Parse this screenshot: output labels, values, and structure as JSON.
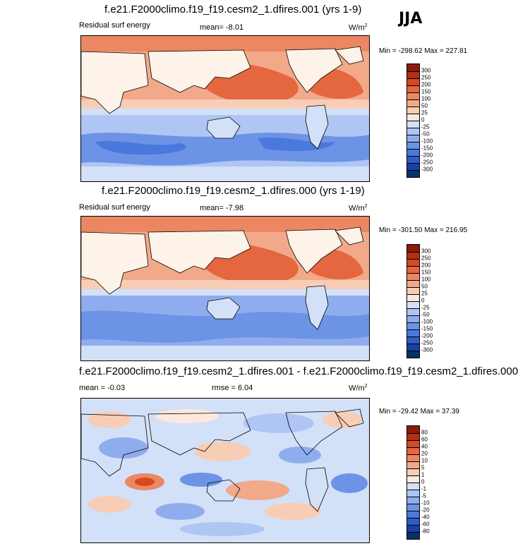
{
  "season": "JJA",
  "units_main": "W/m",
  "units_exp": "2",
  "colors": {
    "main": [
      "#08306b",
      "#1b3fa8",
      "#2f5cc9",
      "#4b78dd",
      "#6d93e6",
      "#8fadee",
      "#afc6f4",
      "#d2e1f8",
      "#fce8dc",
      "#f8cdb5",
      "#f2a98a",
      "#ec8763",
      "#e4673f",
      "#d34a23",
      "#b42e12",
      "#8b1a0a"
    ],
    "diff": [
      "#08306b",
      "#1b3fa8",
      "#2f5cc9",
      "#4b78dd",
      "#6d93e6",
      "#8fadee",
      "#afc6f4",
      "#d2e1f8",
      "#fce8dc",
      "#f8cdb5",
      "#f2a98a",
      "#ec8763",
      "#e4673f",
      "#d34a23",
      "#b42e12",
      "#8b1a0a"
    ],
    "land": "#fdf3e8",
    "map_bg": "#f2a98a"
  },
  "panels": [
    {
      "title": "f.e21.F2000climo.f19_f19.cesm2_1.dfires.001 (yrs 1-9)",
      "left_label": "Residual surf energy",
      "mid_label": "mean=  -8.01",
      "minmax": "Min = -298.62 Max = 227.81",
      "ticks": [
        "300",
        "250",
        "200",
        "150",
        "100",
        "50",
        "25",
        "0",
        "-25",
        "-50",
        "-100",
        "-150",
        "-200",
        "-250",
        "-300"
      ]
    },
    {
      "title": "f.e21.F2000climo.f19_f19.cesm2_1.dfires.000 (yrs 1-19)",
      "left_label": "Residual surf energy",
      "mid_label": "mean=  -7.98",
      "minmax": "Min = -301.50 Max = 216.95",
      "ticks": [
        "300",
        "250",
        "200",
        "150",
        "100",
        "50",
        "25",
        "0",
        "-25",
        "-50",
        "-100",
        "-150",
        "-200",
        "-250",
        "-300"
      ]
    },
    {
      "title": "f.e21.F2000climo.f19_f19.cesm2_1.dfires.001 - f.e21.F2000climo.f19_f19.cesm2_1.dfires.000",
      "left_label": "mean =  -0.03",
      "mid_label": "rmse =  6.04",
      "minmax": "Min = -29.42 Max =  37.39",
      "ticks": [
        "80",
        "60",
        "40",
        "20",
        "10",
        "5",
        "1",
        "0",
        "-1",
        "-5",
        "-10",
        "-20",
        "-40",
        "-60",
        "-80"
      ]
    }
  ],
  "chart_data": [
    {
      "type": "heatmap",
      "title": "f.e21.F2000climo.f19_f19.cesm2_1.dfires.001 (yrs 1-9)",
      "variable": "Residual surf energy",
      "units": "W/m2",
      "mean": -8.01,
      "min": -298.62,
      "max": 227.81,
      "contour_levels": [
        -300,
        -250,
        -200,
        -150,
        -100,
        -50,
        -25,
        0,
        25,
        50,
        100,
        150,
        200,
        250,
        300
      ],
      "pattern": "positive (red) over Northern Hemisphere oceans, negative (blue) over Southern Hemisphere oceans"
    },
    {
      "type": "heatmap",
      "title": "f.e21.F2000climo.f19_f19.cesm2_1.dfires.000 (yrs 1-19)",
      "variable": "Residual surf energy",
      "units": "W/m2",
      "mean": -7.98,
      "min": -301.5,
      "max": 216.95,
      "contour_levels": [
        -300,
        -250,
        -200,
        -150,
        -100,
        -50,
        -25,
        0,
        25,
        50,
        100,
        150,
        200,
        250,
        300
      ],
      "pattern": "positive (red) over Northern Hemisphere oceans, negative (blue) over Southern Hemisphere oceans"
    },
    {
      "type": "heatmap",
      "title": "f.e21.F2000climo.f19_f19.cesm2_1.dfires.001 - f.e21.F2000climo.f19_f19.cesm2_1.dfires.000",
      "variable": "difference",
      "units": "W/m2",
      "mean": -0.03,
      "rmse": 6.04,
      "min": -29.42,
      "max": 37.39,
      "contour_levels": [
        -80,
        -60,
        -40,
        -20,
        -10,
        -5,
        -1,
        0,
        1,
        5,
        10,
        20,
        40,
        60,
        80
      ],
      "pattern": "mixed small positive and negative anomalies"
    }
  ]
}
